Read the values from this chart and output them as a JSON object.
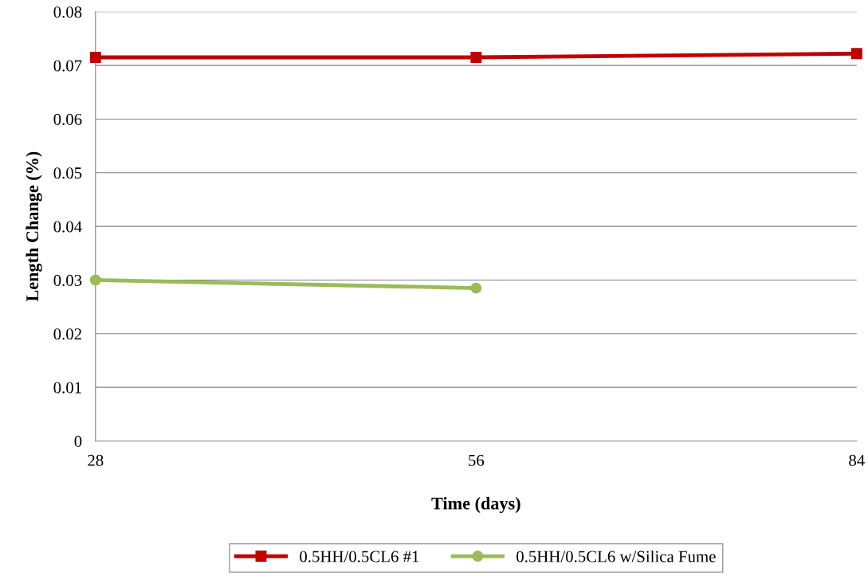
{
  "chart_data": {
    "type": "line",
    "xlabel": "Time (days)",
    "ylabel": "Length Change (%)",
    "x": [
      28,
      56,
      84
    ],
    "series": [
      {
        "name": "0.5HH/0.5CL6 #1",
        "color": "#c00000",
        "marker": "square",
        "values": [
          0.0715,
          0.0715,
          0.0722
        ]
      },
      {
        "name": "0.5HH/0.5CL6 w/Silica Fume",
        "color": "#9bbb59",
        "marker": "circle",
        "x": [
          28,
          56
        ],
        "values": [
          0.03,
          0.0285
        ]
      }
    ],
    "xlim": [
      28,
      84
    ],
    "xticks": [
      28,
      56,
      84
    ],
    "ylim": [
      0,
      0.08
    ],
    "yticks": [
      0,
      0.01,
      0.02,
      0.03,
      0.04,
      0.05,
      0.06,
      0.07,
      0.08
    ],
    "grid": "y",
    "legend": "bottom"
  }
}
